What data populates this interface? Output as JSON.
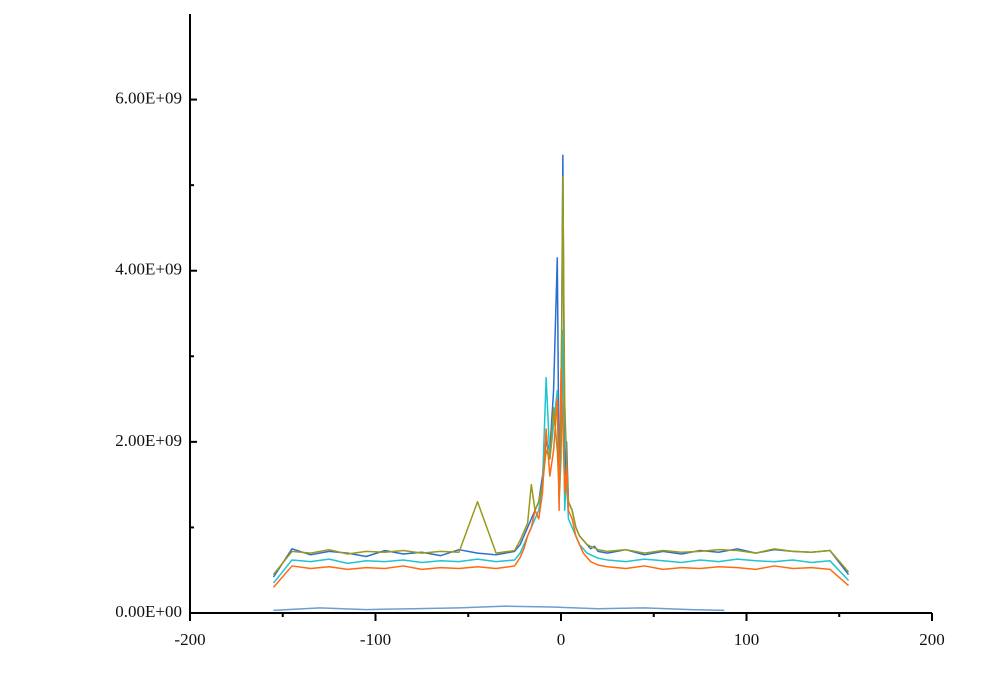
{
  "chart_data": {
    "type": "line",
    "x": [
      -155,
      -145,
      -135,
      -125,
      -115,
      -105,
      -95,
      -85,
      -75,
      -65,
      -55,
      -45,
      -35,
      -25,
      -22,
      -20,
      -18,
      -16,
      -14,
      -12,
      -10,
      -8,
      -6,
      -4,
      -2,
      -1,
      0,
      1,
      2,
      3,
      4,
      6,
      8,
      10,
      12,
      14,
      16,
      18,
      20,
      25,
      35,
      45,
      55,
      65,
      75,
      85,
      95,
      105,
      115,
      125,
      135,
      145,
      155
    ],
    "series": [
      {
        "color": "#2a6fd0",
        "values": [
          420000000.0,
          750000000.0,
          680000000.0,
          720000000.0,
          700000000.0,
          660000000.0,
          730000000.0,
          690000000.0,
          710000000.0,
          670000000.0,
          740000000.0,
          700000000.0,
          680000000.0,
          720000000.0,
          800000000.0,
          900000000.0,
          1000000000.0,
          1100000000.0,
          1200000000.0,
          1300000000.0,
          1600000000.0,
          2000000000.0,
          1900000000.0,
          2600000000.0,
          4150000000.0,
          1500000000.0,
          2200000000.0,
          5350000000.0,
          1600000000.0,
          2000000000.0,
          1300000000.0,
          1200000000.0,
          1000000000.0,
          900000000.0,
          850000000.0,
          800000000.0,
          750000000.0,
          780000000.0,
          720000000.0,
          700000000.0,
          740000000.0,
          680000000.0,
          720000000.0,
          690000000.0,
          730000000.0,
          710000000.0,
          750000000.0,
          700000000.0,
          740000000.0,
          720000000.0,
          710000000.0,
          730000000.0,
          450000000.0
        ]
      },
      {
        "color": "#1fc4d0",
        "values": [
          350000000.0,
          620000000.0,
          600000000.0,
          630000000.0,
          580000000.0,
          610000000.0,
          600000000.0,
          620000000.0,
          590000000.0,
          610000000.0,
          600000000.0,
          630000000.0,
          600000000.0,
          620000000.0,
          700000000.0,
          800000000.0,
          900000000.0,
          1000000000.0,
          1100000000.0,
          1200000000.0,
          1500000000.0,
          2750000000.0,
          1800000000.0,
          2200000000.0,
          2600000000.0,
          1300000000.0,
          1800000000.0,
          3300000000.0,
          1200000000.0,
          1600000000.0,
          1100000000.0,
          1000000000.0,
          900000000.0,
          800000000.0,
          750000000.0,
          700000000.0,
          680000000.0,
          660000000.0,
          640000000.0,
          620000000.0,
          600000000.0,
          630000000.0,
          610000000.0,
          590000000.0,
          620000000.0,
          600000000.0,
          630000000.0,
          610000000.0,
          600000000.0,
          620000000.0,
          590000000.0,
          610000000.0,
          380000000.0
        ]
      },
      {
        "color": "#9a9a1a",
        "values": [
          450000000.0,
          720000000.0,
          700000000.0,
          740000000.0,
          690000000.0,
          720000000.0,
          710000000.0,
          730000000.0,
          700000000.0,
          720000000.0,
          710000000.0,
          1300000000.0,
          700000000.0,
          730000000.0,
          850000000.0,
          950000000.0,
          1050000000.0,
          1500000000.0,
          1200000000.0,
          1300000000.0,
          1500000000.0,
          1900000000.0,
          1800000000.0,
          2400000000.0,
          1900000000.0,
          1400000000.0,
          2000000000.0,
          5100000000.0,
          2450000000.0,
          1800000000.0,
          1300000000.0,
          1200000000.0,
          1000000000.0,
          900000000.0,
          850000000.0,
          800000000.0,
          780000000.0,
          760000000.0,
          740000000.0,
          720000000.0,
          740000000.0,
          700000000.0,
          730000000.0,
          710000000.0,
          720000000.0,
          740000000.0,
          730000000.0,
          700000000.0,
          750000000.0,
          720000000.0,
          710000000.0,
          730000000.0,
          480000000.0
        ]
      },
      {
        "color": "#ff6a13",
        "values": [
          300000000.0,
          550000000.0,
          520000000.0,
          540000000.0,
          510000000.0,
          530000000.0,
          520000000.0,
          550000000.0,
          510000000.0,
          530000000.0,
          520000000.0,
          540000000.0,
          520000000.0,
          550000000.0,
          650000000.0,
          750000000.0,
          900000000.0,
          1000000000.0,
          1200000000.0,
          1100000000.0,
          1400000000.0,
          2150000000.0,
          1600000000.0,
          1900000000.0,
          2500000000.0,
          1200000000.0,
          2850000000.0,
          2200000000.0,
          1400000000.0,
          1700000000.0,
          1200000000.0,
          1100000000.0,
          900000000.0,
          800000000.0,
          700000000.0,
          650000000.0,
          600000000.0,
          580000000.0,
          560000000.0,
          540000000.0,
          520000000.0,
          550000000.0,
          510000000.0,
          530000000.0,
          520000000.0,
          540000000.0,
          530000000.0,
          510000000.0,
          550000000.0,
          520000000.0,
          530000000.0,
          510000000.0,
          320000000.0
        ]
      },
      {
        "color": "#6a9fd4",
        "x": [
          -155,
          -130,
          -105,
          -80,
          -55,
          -30,
          -5,
          20,
          45,
          70,
          88
        ],
        "values": [
          30000000.0,
          60000000.0,
          40000000.0,
          50000000.0,
          60000000.0,
          80000000.0,
          70000000.0,
          50000000.0,
          60000000.0,
          40000000.0,
          30000000.0
        ]
      }
    ],
    "xlim": [
      -200,
      200
    ],
    "xticks": [
      -200,
      -100,
      0,
      100,
      200
    ],
    "xminorticks": [
      -150,
      -50,
      50,
      150
    ],
    "ylim": [
      0,
      7000000000.0
    ],
    "yticks": [
      {
        "value": 0,
        "label": "0.00E+00"
      },
      {
        "value": 2000000000.0,
        "label": "2.00E+09"
      },
      {
        "value": 4000000000.0,
        "label": "4.00E+09"
      },
      {
        "value": 6000000000.0,
        "label": "6.00E+09"
      }
    ],
    "yminorticks": [
      1000000000.0,
      3000000000.0,
      5000000000.0
    ],
    "grid": false
  }
}
